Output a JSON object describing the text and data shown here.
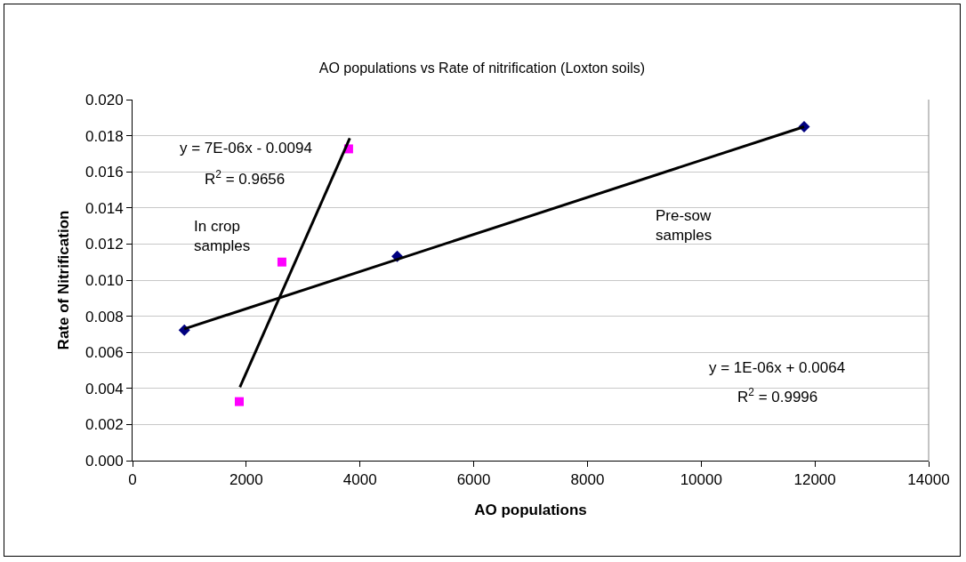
{
  "chart_data": {
    "type": "scatter",
    "title": "AO populations vs Rate of nitrification (Loxton soils)",
    "xlabel": "AO populations",
    "ylabel": "Rate of Nitrification",
    "xlim": [
      0,
      14000
    ],
    "xticks": [
      0,
      2000,
      4000,
      6000,
      8000,
      10000,
      12000,
      14000
    ],
    "ylim": [
      0,
      0.02
    ],
    "yticks": [
      {
        "value": 0,
        "label": "0.000"
      },
      {
        "value": 0.002,
        "label": "0.002"
      },
      {
        "value": 0.004,
        "label": "0.004"
      },
      {
        "value": 0.006,
        "label": "0.006"
      },
      {
        "value": 0.008,
        "label": "0.008"
      },
      {
        "value": 0.01,
        "label": "0.010"
      },
      {
        "value": 0.012,
        "label": "0.012"
      },
      {
        "value": 0.014,
        "label": "0.014"
      },
      {
        "value": 0.016,
        "label": "0.016"
      },
      {
        "value": 0.018,
        "label": "0.018"
      },
      {
        "value": 0.02,
        "label": "0.020"
      }
    ],
    "grid": "y",
    "series": [
      {
        "marker": "diamond",
        "color": "#000080",
        "x": [
          911,
          4655,
          11810
        ],
        "values": [
          0.00723,
          0.01132,
          0.0185
        ]
      },
      {
        "marker": "square",
        "color": "#ff00ff",
        "x": [
          1877,
          2627,
          3800
        ],
        "values": [
          0.00327,
          0.011,
          0.01727
        ]
      },
      {
        "type": "line",
        "marker": "none",
        "color": "#000000",
        "x": [
          911,
          11810
        ],
        "values": [
          0.0073,
          0.0185
        ]
      },
      {
        "type": "line",
        "marker": "none",
        "color": "#000000",
        "x": [
          1888,
          3821
        ],
        "values": [
          0.00407,
          0.01786
        ]
      }
    ],
    "annotations": [
      "y = 7E-06x - 0.0094",
      "R$^{2}$ = 0.9656",
      "In crop\nsamples",
      "Pre-sow\nsamples",
      "y = 1E-06x + 0.0064",
      "R$^{2}$ = 0.9996"
    ]
  }
}
